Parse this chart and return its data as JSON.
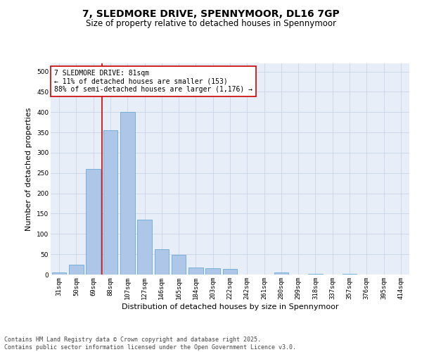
{
  "title1": "7, SLEDMORE DRIVE, SPENNYMOOR, DL16 7GP",
  "title2": "Size of property relative to detached houses in Spennymoor",
  "xlabel": "Distribution of detached houses by size in Spennymoor",
  "ylabel": "Number of detached properties",
  "categories": [
    "31sqm",
    "50sqm",
    "69sqm",
    "88sqm",
    "107sqm",
    "127sqm",
    "146sqm",
    "165sqm",
    "184sqm",
    "203sqm",
    "222sqm",
    "242sqm",
    "261sqm",
    "280sqm",
    "299sqm",
    "318sqm",
    "337sqm",
    "357sqm",
    "376sqm",
    "395sqm",
    "414sqm"
  ],
  "values": [
    5,
    25,
    260,
    355,
    400,
    135,
    63,
    48,
    17,
    15,
    14,
    0,
    0,
    5,
    0,
    2,
    0,
    1,
    0,
    0,
    0
  ],
  "bar_color": "#aec6e8",
  "bar_edge_color": "#6aaad4",
  "vline_color": "#cc0000",
  "annotation_text": "7 SLEDMORE DRIVE: 81sqm\n← 11% of detached houses are smaller (153)\n88% of semi-detached houses are larger (1,176) →",
  "annotation_box_color": "#ffffff",
  "annotation_box_edge": "#cc0000",
  "ylim": [
    0,
    520
  ],
  "yticks": [
    0,
    50,
    100,
    150,
    200,
    250,
    300,
    350,
    400,
    450,
    500
  ],
  "grid_color": "#c8d4e8",
  "bg_color": "#e8eef8",
  "footer": "Contains HM Land Registry data © Crown copyright and database right 2025.\nContains public sector information licensed under the Open Government Licence v3.0.",
  "title_fontsize": 10,
  "subtitle_fontsize": 8.5,
  "tick_fontsize": 6.5,
  "label_fontsize": 8,
  "footer_fontsize": 6,
  "annot_fontsize": 7
}
